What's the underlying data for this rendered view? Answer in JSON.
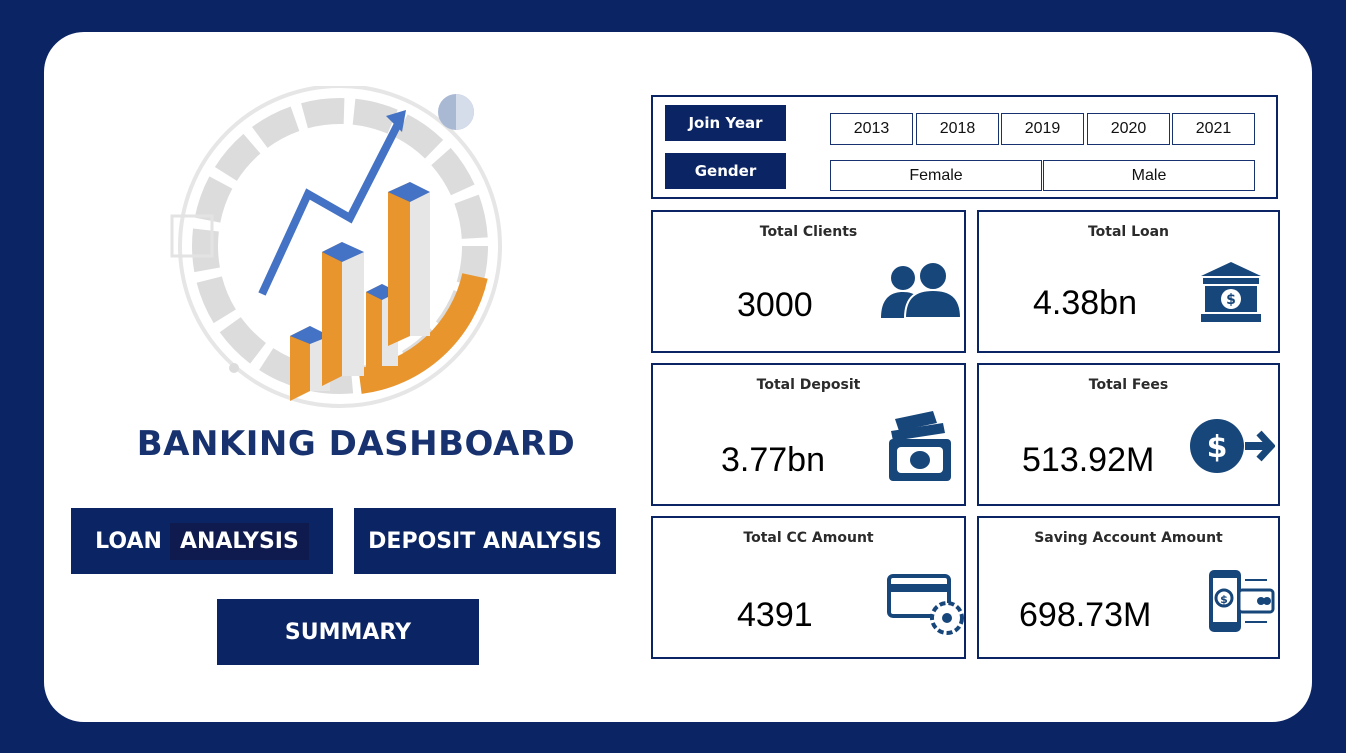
{
  "brand": {
    "title": "BANKING DASHBOARD"
  },
  "nav": {
    "loan_prefix": "LOAN",
    "loan_suffix": "ANALYSIS",
    "deposit": "DEPOSIT ANALYSIS",
    "summary": "SUMMARY"
  },
  "filters": {
    "join_year_label": "Join Year",
    "gender_label": "Gender",
    "years": [
      "2013",
      "2018",
      "2019",
      "2020",
      "2021"
    ],
    "genders": [
      "Female",
      "Male"
    ]
  },
  "kpis": {
    "clients": {
      "title": "Total Clients",
      "value": "3000",
      "icon": "people-icon"
    },
    "loan": {
      "title": "Total Loan",
      "value": "4.38bn",
      "icon": "bank-icon"
    },
    "deposit": {
      "title": "Total Deposit",
      "value": "3.77bn",
      "icon": "cash-icon"
    },
    "fees": {
      "title": "Total Fees",
      "value": "513.92M",
      "icon": "dollar-arrow-icon"
    },
    "cc": {
      "title": "Total CC Amount",
      "value": "4391",
      "icon": "credit-card-gear-icon"
    },
    "saving": {
      "title": "Saving Account Amount",
      "value": "698.73M",
      "icon": "mobile-transfer-icon"
    }
  },
  "colors": {
    "navy": "#0b2463",
    "orange": "#e8952e",
    "blue": "#4472c4",
    "icon": "#17467a"
  }
}
